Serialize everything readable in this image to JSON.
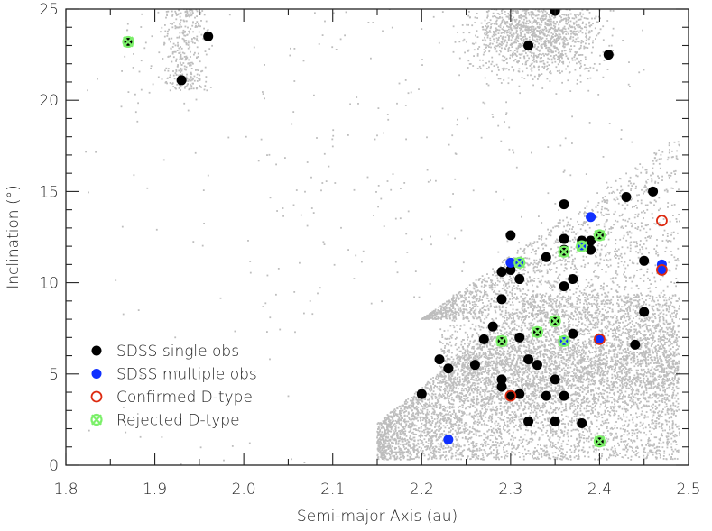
{
  "chart_data": {
    "type": "scatter",
    "title": "",
    "xlabel": "Semi-major Axis (au)",
    "ylabel": "Inclination (°)",
    "xlim": [
      1.8,
      2.5
    ],
    "ylim": [
      0,
      25
    ],
    "x_ticks": [
      "1.8",
      "1.9",
      "2.0",
      "2.1",
      "2.2",
      "2.3",
      "2.4",
      "2.5"
    ],
    "y_ticks": [
      "0",
      "5",
      "10",
      "15",
      "20",
      "25"
    ],
    "grid": false,
    "legend_position": "bottom-left",
    "colors": {
      "background_population": "#bdbdbd",
      "single": "#000000",
      "multiple": "#1030ff",
      "confirmed": "#dd2a10",
      "rejected": "#7cf06a",
      "axis": "#222222"
    },
    "legend": [
      {
        "label": "SDSS single obs",
        "marker": "filled-circle",
        "color": "#000000"
      },
      {
        "label": "SDSS multiple obs",
        "marker": "filled-circle",
        "color": "#1030ff"
      },
      {
        "label": "Confirmed D-type",
        "marker": "open-circle",
        "color": "#dd2a10"
      },
      {
        "label": "Rejected D-type",
        "marker": "crossed-circle",
        "color": "#7cf06a"
      }
    ],
    "series": [
      {
        "name": "SDSS single obs",
        "points": [
          [
            1.96,
            23.5
          ],
          [
            1.93,
            21.1
          ],
          [
            2.35,
            24.9
          ],
          [
            2.32,
            23.0
          ],
          [
            2.41,
            22.5
          ],
          [
            2.46,
            15.0
          ],
          [
            2.43,
            14.7
          ],
          [
            2.36,
            14.3
          ],
          [
            2.3,
            12.6
          ],
          [
            2.36,
            12.4
          ],
          [
            2.38,
            12.3
          ],
          [
            2.39,
            12.3
          ],
          [
            2.39,
            11.8
          ],
          [
            2.36,
            11.8
          ],
          [
            2.34,
            11.4
          ],
          [
            2.29,
            10.6
          ],
          [
            2.3,
            10.7
          ],
          [
            2.31,
            10.2
          ],
          [
            2.37,
            10.2
          ],
          [
            2.36,
            9.8
          ],
          [
            2.45,
            11.2
          ],
          [
            2.29,
            9.1
          ],
          [
            2.45,
            8.4
          ],
          [
            2.28,
            7.6
          ],
          [
            2.27,
            6.9
          ],
          [
            2.44,
            6.6
          ],
          [
            2.31,
            7.0
          ],
          [
            2.37,
            7.2
          ],
          [
            2.22,
            5.8
          ],
          [
            2.23,
            5.3
          ],
          [
            2.26,
            5.5
          ],
          [
            2.32,
            5.8
          ],
          [
            2.33,
            5.5
          ],
          [
            2.29,
            4.7
          ],
          [
            2.29,
            4.3
          ],
          [
            2.35,
            4.7
          ],
          [
            2.34,
            3.8
          ],
          [
            2.31,
            3.9
          ],
          [
            2.36,
            3.8
          ],
          [
            2.2,
            3.9
          ],
          [
            2.32,
            2.4
          ],
          [
            2.35,
            2.4
          ],
          [
            2.38,
            2.3
          ],
          [
            1.87,
            23.2
          ],
          [
            2.29,
            6.8
          ],
          [
            2.33,
            7.3
          ],
          [
            2.35,
            7.9
          ],
          [
            2.4,
            1.3
          ],
          [
            2.4,
            12.6
          ],
          [
            2.36,
            11.7
          ],
          [
            2.3,
            3.8
          ]
        ]
      },
      {
        "name": "SDSS multiple obs",
        "points": [
          [
            2.39,
            13.6
          ],
          [
            2.3,
            11.1
          ],
          [
            2.47,
            11.0
          ],
          [
            2.47,
            10.7
          ],
          [
            2.23,
            1.4
          ],
          [
            2.4,
            6.9
          ],
          [
            2.31,
            11.1
          ],
          [
            2.38,
            12.0
          ],
          [
            2.36,
            6.8
          ]
        ]
      },
      {
        "name": "Confirmed D-type",
        "points": [
          [
            2.47,
            13.4
          ],
          [
            2.47,
            10.7
          ],
          [
            2.4,
            6.9
          ],
          [
            2.3,
            3.8
          ]
        ]
      },
      {
        "name": "Rejected D-type",
        "points": [
          [
            1.87,
            23.2
          ],
          [
            2.31,
            11.1
          ],
          [
            2.36,
            11.7
          ],
          [
            2.38,
            12.0
          ],
          [
            2.4,
            12.6
          ],
          [
            2.29,
            6.8
          ],
          [
            2.33,
            7.3
          ],
          [
            2.35,
            7.9
          ],
          [
            2.36,
            6.8
          ],
          [
            2.4,
            1.3
          ]
        ]
      }
    ]
  }
}
